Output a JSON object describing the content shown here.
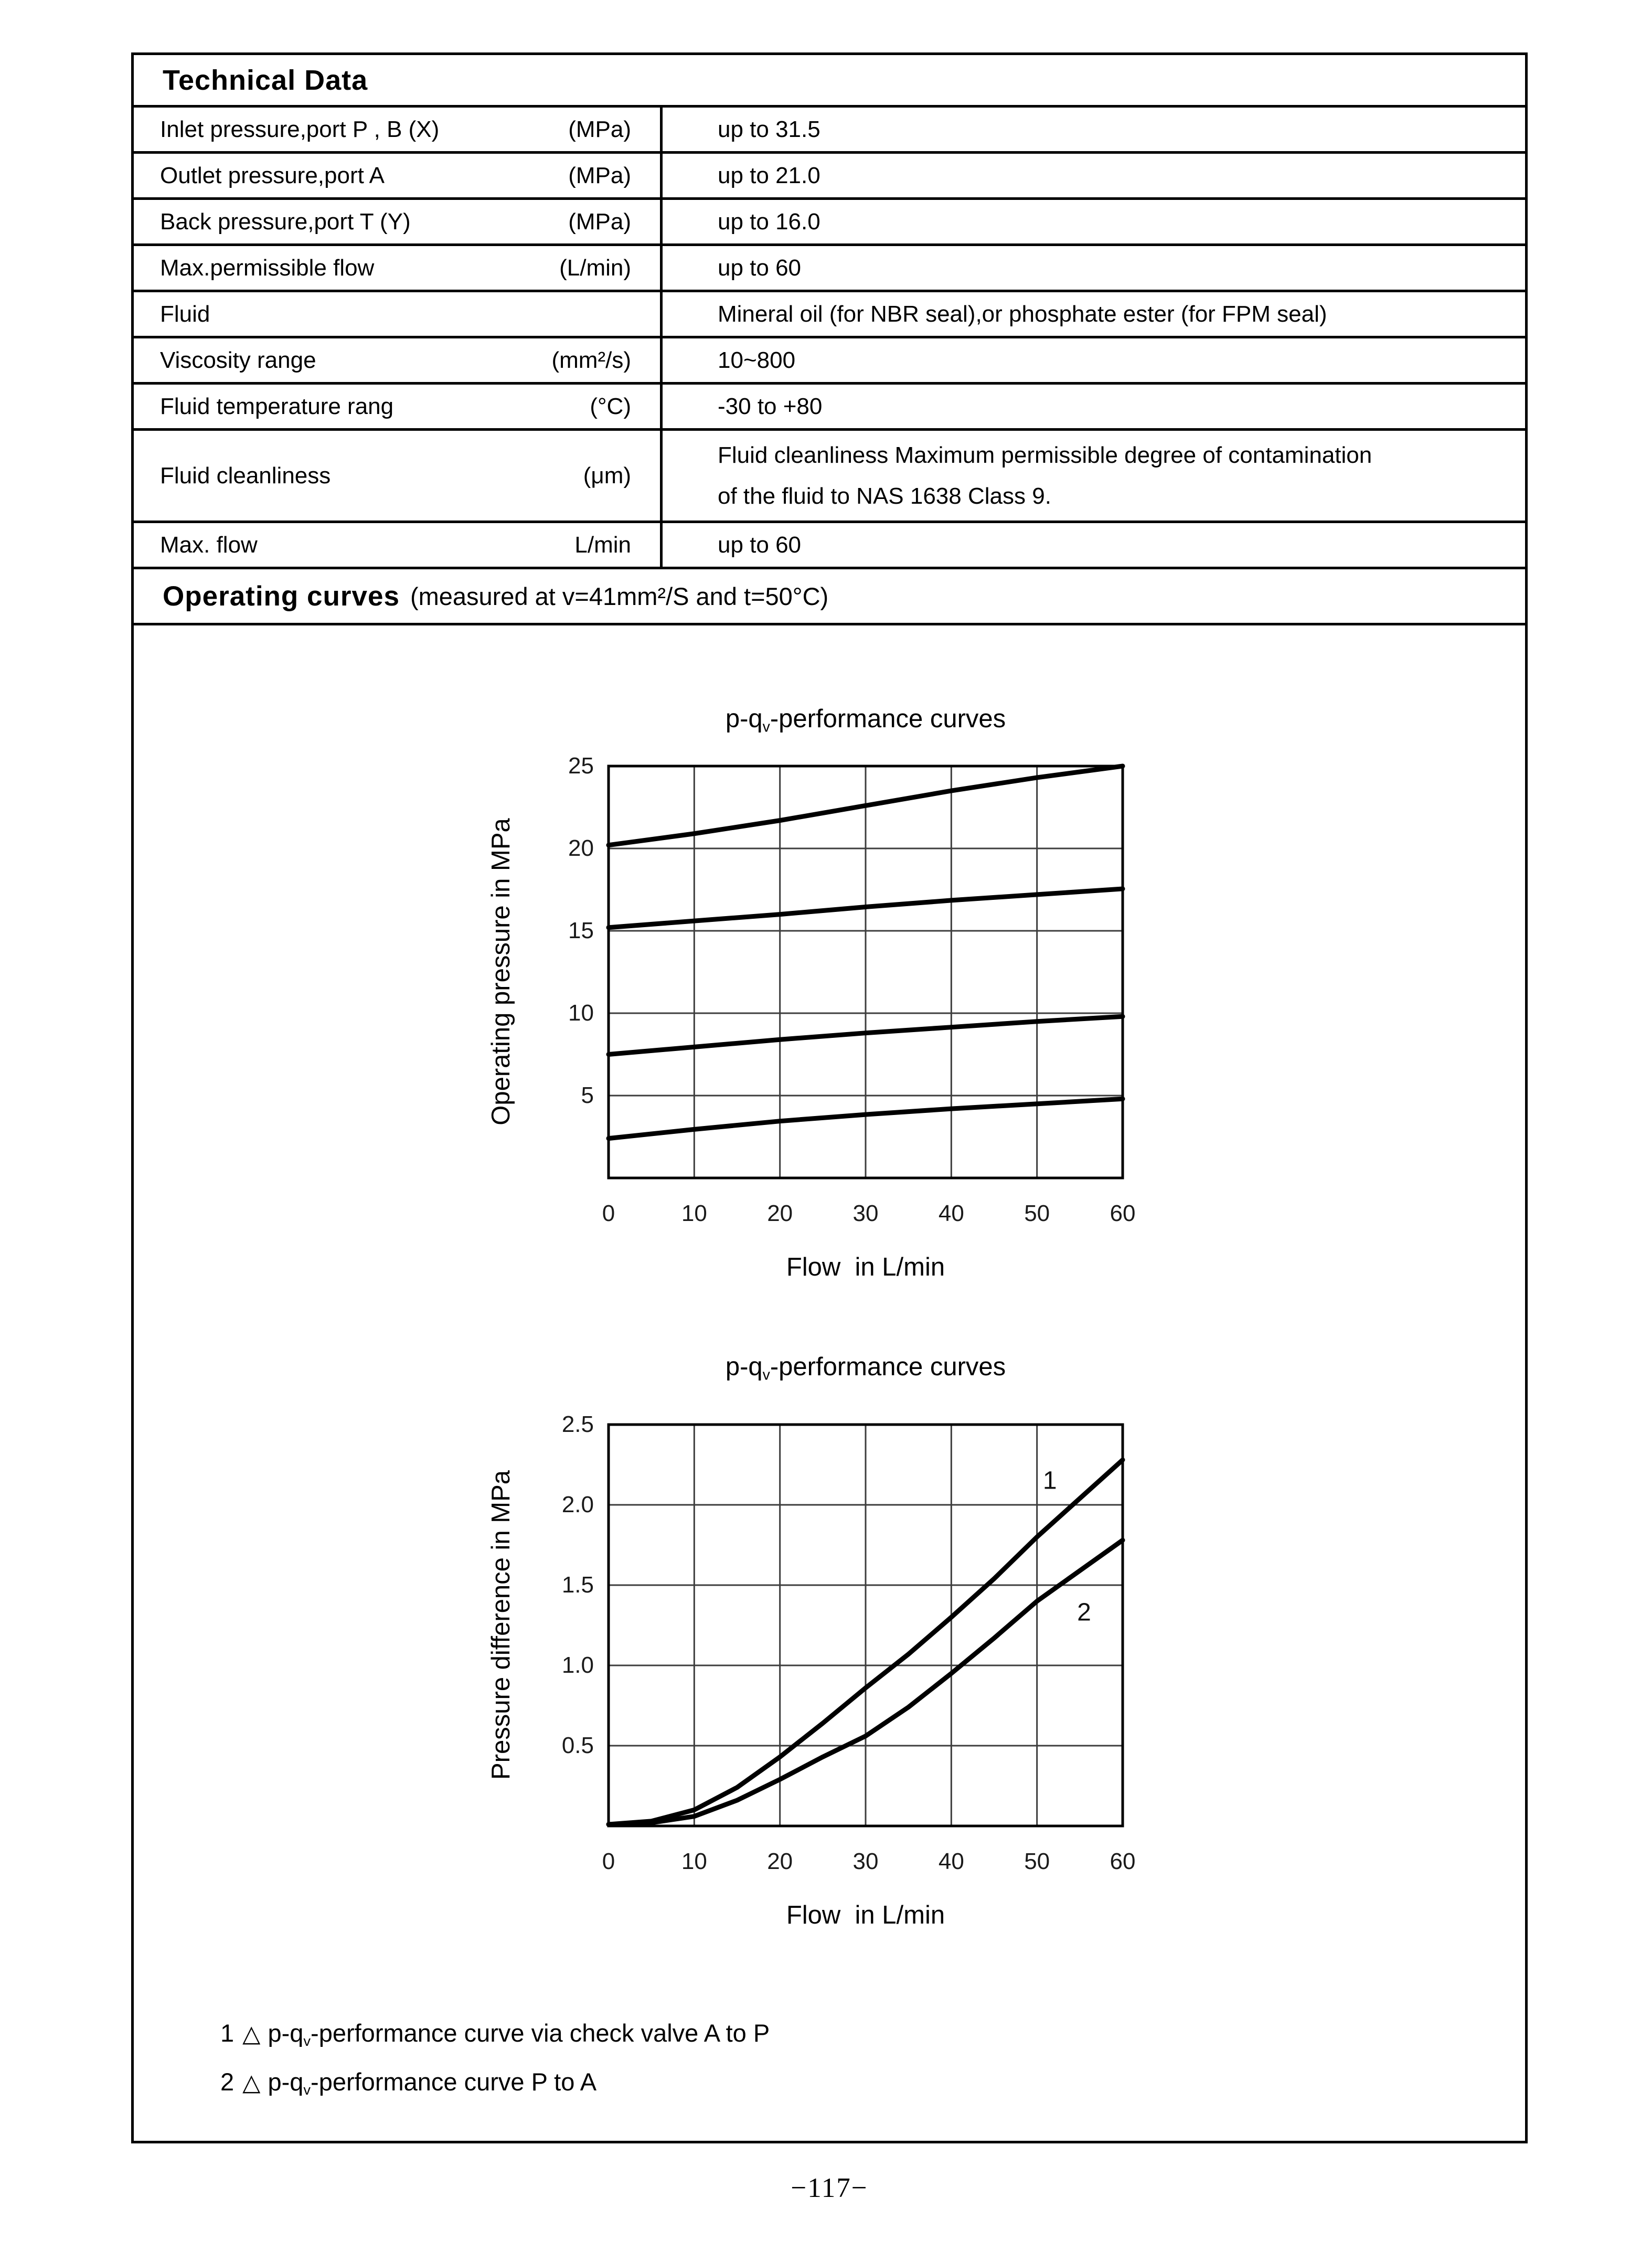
{
  "page": {
    "footer_page_number": "−117−"
  },
  "table": {
    "title": "Technical Data",
    "rows": [
      {
        "label": "Inlet pressure,port P ,  B  (X)",
        "unit": "(MPa)",
        "value": "up to 31.5"
      },
      {
        "label": "Outlet pressure,port A",
        "unit": "(MPa)",
        "value": "up to 21.0"
      },
      {
        "label": "Back pressure,port T  (Y)",
        "unit": "(MPa)",
        "value": "up to 16.0"
      },
      {
        "label": "Max.permissible flow",
        "unit": "(L/min)",
        "value": "up to 60"
      },
      {
        "label": "Fluid",
        "unit": "",
        "value": "Mineral oil (for NBR seal),or phosphate ester (for FPM seal)"
      },
      {
        "label": "Viscosity range",
        "unit": "(mm²/s)",
        "value": "10~800"
      },
      {
        "label": "Fluid temperature rang",
        "unit": "(°C)",
        "value": "-30 to +80"
      },
      {
        "label": "Fluid cleanliness",
        "unit": "(μm)",
        "value": "Fluid cleanliness Maximum permissible degree of contamination",
        "value_line2": "of the fluid to NAS 1638 Class 9."
      },
      {
        "label": "Max. flow",
        "unit": "L/min",
        "value": "up to 60"
      }
    ]
  },
  "section": {
    "title": "Operating curves",
    "subtitle": "(measured at v=41mm²/S and t=50°C)"
  },
  "chart_data": [
    {
      "type": "line",
      "title_text": "p-qv-performance curves",
      "title_prefix": "p-q",
      "title_sub": "v",
      "title_suffix": "-performance curves",
      "xlabel": "Flow  in L/min",
      "ylabel": "Operating pressure in MPa",
      "xlim": [
        0,
        60
      ],
      "ylim": [
        0,
        25
      ],
      "grid": true,
      "x_tick_values": [
        0,
        10,
        20,
        30,
        40,
        50,
        60
      ],
      "x_tick_labels": [
        "0",
        "10",
        "20",
        "30",
        "40",
        "50",
        "60"
      ],
      "y_tick_values": [
        5,
        10,
        15,
        20,
        25
      ],
      "y_tick_labels": [
        "5",
        "10",
        "15",
        "20",
        "25"
      ],
      "series": [
        {
          "name": "upper-curve-20-25",
          "x": [
            0,
            10,
            20,
            30,
            40,
            50,
            60
          ],
          "y": [
            20.2,
            20.9,
            21.7,
            22.6,
            23.5,
            24.3,
            25.0
          ]
        },
        {
          "name": "curve-15-17.5",
          "x": [
            0,
            10,
            20,
            30,
            40,
            50,
            60
          ],
          "y": [
            15.2,
            15.6,
            16.0,
            16.45,
            16.85,
            17.2,
            17.55
          ]
        },
        {
          "name": "curve-7.5-9.8",
          "x": [
            0,
            10,
            20,
            30,
            40,
            50,
            60
          ],
          "y": [
            7.5,
            7.95,
            8.4,
            8.8,
            9.15,
            9.5,
            9.8
          ]
        },
        {
          "name": "lower-curve-2.5-4.8",
          "x": [
            0,
            10,
            20,
            30,
            40,
            50,
            60
          ],
          "y": [
            2.4,
            2.95,
            3.45,
            3.85,
            4.2,
            4.5,
            4.8
          ]
        }
      ],
      "curve_labels": []
    },
    {
      "type": "line",
      "title_text": "p-qv-performance curves",
      "title_prefix": "p-q",
      "title_sub": "v",
      "title_suffix": "-performance curves",
      "xlabel": "Flow  in L/min",
      "ylabel": "Pressure difference in MPa",
      "xlim": [
        0,
        60
      ],
      "ylim": [
        0,
        2.5
      ],
      "grid": true,
      "x_tick_values": [
        0,
        10,
        20,
        30,
        40,
        50,
        60
      ],
      "x_tick_labels": [
        "0",
        "10",
        "20",
        "30",
        "40",
        "50",
        "60"
      ],
      "y_tick_values": [
        0.5,
        1.0,
        1.5,
        2.0,
        2.5
      ],
      "y_tick_labels": [
        "0.5",
        "1.0",
        "1.5",
        "2.0",
        "2.5"
      ],
      "series": [
        {
          "name": "curve-1-A-to-P",
          "x": [
            0,
            5,
            10,
            15,
            20,
            25,
            30,
            35,
            40,
            45,
            50,
            55,
            60
          ],
          "y": [
            0.01,
            0.03,
            0.1,
            0.24,
            0.43,
            0.64,
            0.86,
            1.07,
            1.3,
            1.54,
            1.8,
            2.04,
            2.28
          ]
        },
        {
          "name": "curve-2-P-to-A",
          "x": [
            0,
            5,
            10,
            15,
            20,
            25,
            30,
            35,
            40,
            45,
            50,
            55,
            60
          ],
          "y": [
            0.01,
            0.02,
            0.06,
            0.16,
            0.29,
            0.43,
            0.56,
            0.74,
            0.95,
            1.17,
            1.4,
            1.59,
            1.78
          ]
        }
      ],
      "curve_labels": [
        {
          "text": "1",
          "x": 51.5,
          "y": 2.1
        },
        {
          "text": "2",
          "x": 55.5,
          "y": 1.28
        }
      ]
    }
  ],
  "legend": [
    {
      "num": "1",
      "symbol": "△",
      "prefix": "p-q",
      "sub": "v",
      "suffix": "-performance curve via check valve A to P"
    },
    {
      "num": "2",
      "symbol": "△",
      "prefix": "p-q",
      "sub": "v",
      "suffix": "-performance curve P to A"
    }
  ]
}
